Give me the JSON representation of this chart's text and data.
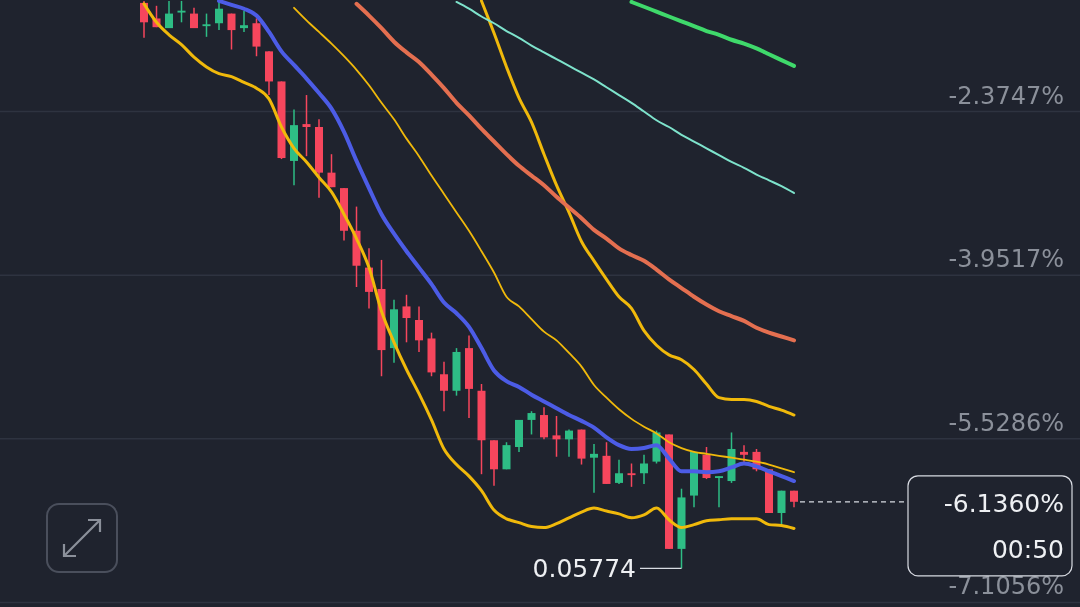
{
  "chart_data": {
    "type": "candlestick",
    "categories": [
      null,
      null,
      null,
      null,
      null,
      null,
      null,
      null,
      null,
      null,
      null,
      null,
      null,
      null,
      null,
      null,
      null,
      null,
      null,
      null,
      null,
      null,
      null,
      null,
      null,
      null,
      null,
      null,
      null,
      null,
      null,
      null,
      null,
      null,
      null,
      null,
      null,
      null,
      null,
      null,
      null,
      null,
      null,
      null,
      null,
      null,
      null,
      null,
      null,
      null,
      null,
      null,
      null
    ],
    "ohlc": [
      [
        -1.328,
        -1.309,
        -1.664,
        -1.515
      ],
      [
        -1.478,
        -1.356,
        -1.562,
        -1.562
      ],
      [
        -1.571,
        -1.309,
        -1.571,
        -1.431
      ],
      [
        -1.421,
        -1.309,
        -1.515,
        -1.403
      ],
      [
        -1.431,
        -1.375,
        -1.571,
        -1.571
      ],
      [
        -1.552,
        -1.431,
        -1.655,
        -1.534
      ],
      [
        -1.524,
        -1.309,
        -1.59,
        -1.384
      ],
      [
        -1.431,
        -1.431,
        -1.777,
        -1.59
      ],
      [
        -1.571,
        -1.403,
        -1.608,
        -1.543
      ],
      [
        -1.524,
        -1.478,
        -1.842,
        -1.749
      ],
      [
        -1.795,
        -1.795,
        -2.216,
        -2.085
      ],
      [
        -2.085,
        -2.085,
        -2.833,
        -2.823
      ],
      [
        -2.851,
        -2.356,
        -3.085,
        -2.506
      ],
      [
        -2.496,
        -2.216,
        -2.805,
        -2.524
      ],
      [
        -2.524,
        -2.45,
        -3.207,
        -2.964
      ],
      [
        -2.964,
        -2.786,
        -3.104,
        -3.104
      ],
      [
        -3.113,
        -3.113,
        -3.618,
        -3.524
      ],
      [
        -3.524,
        -3.291,
        -4.066,
        -3.861
      ],
      [
        -3.879,
        -3.693,
        -4.272,
        -4.113
      ],
      [
        -4.085,
        -3.805,
        -4.926,
        -4.674
      ],
      [
        -4.655,
        -4.188,
        -4.795,
        -4.281
      ],
      [
        -4.253,
        -4.141,
        -4.599,
        -4.365
      ],
      [
        -4.384,
        -4.253,
        -4.692,
        -4.58
      ],
      [
        -4.562,
        -4.506,
        -4.926,
        -4.889
      ],
      [
        -4.907,
        -4.786,
        -5.263,
        -5.066
      ],
      [
        -5.066,
        -4.655,
        -5.113,
        -4.692
      ],
      [
        -4.655,
        -4.534,
        -5.328,
        -5.048
      ],
      [
        -5.066,
        -5.001,
        -5.87,
        -5.543
      ],
      [
        -5.543,
        -5.543,
        -5.982,
        -5.823
      ],
      [
        -5.823,
        -5.562,
        -5.823,
        -5.59
      ],
      [
        -5.608,
        -5.347,
        -5.655,
        -5.347
      ],
      [
        -5.347,
        -5.263,
        -5.487,
        -5.281
      ],
      [
        -5.3,
        -5.225,
        -5.534,
        -5.515
      ],
      [
        -5.496,
        -5.309,
        -5.702,
        -5.534
      ],
      [
        -5.534,
        -5.44,
        -5.702,
        -5.45
      ],
      [
        -5.44,
        -5.44,
        -5.777,
        -5.72
      ],
      [
        -5.711,
        -5.58,
        -6.048,
        -5.674
      ],
      [
        -5.693,
        -5.562,
        -5.964,
        -5.964
      ],
      [
        -5.954,
        -5.73,
        -5.964,
        -5.861
      ],
      [
        -5.861,
        -5.767,
        -5.992,
        -5.879
      ],
      [
        -5.861,
        -5.683,
        -5.964,
        -5.767
      ],
      [
        -5.749,
        -5.45,
        -5.767,
        -5.468
      ],
      [
        -5.487,
        -5.487,
        -6.59,
        -6.59
      ],
      [
        -6.59,
        -6.01,
        -6.777,
        -6.094
      ],
      [
        -6.076,
        -5.655,
        -6.188,
        -5.655
      ],
      [
        -5.683,
        -5.608,
        -5.917,
        -5.907
      ],
      [
        -5.907,
        -5.889,
        -6.188,
        -5.889
      ],
      [
        -5.936,
        -5.468,
        -5.954,
        -5.627
      ],
      [
        -5.655,
        -5.59,
        -5.749,
        -5.683
      ],
      [
        -5.655,
        -5.627,
        -5.842,
        -5.823
      ],
      [
        -5.823,
        -5.823,
        -6.244,
        -6.244
      ],
      [
        -6.244,
        -6.029,
        -6.356,
        -6.029
      ],
      [
        -6.029,
        -6.029,
        -6.188,
        -6.136
      ]
    ],
    "series": [
      {
        "type": "line",
        "color": "#f0b90b",
        "values": [
          null,
          null,
          null,
          null,
          null,
          null,
          null,
          null,
          null,
          null,
          null,
          null,
          null,
          null,
          null,
          null,
          null,
          null,
          null,
          null,
          null,
          null,
          null,
          null,
          null,
          null,
          null,
          -1.309,
          -1.618,
          -1.945,
          -2.244,
          -2.478,
          -2.786,
          -3.085,
          -3.347,
          -3.627,
          -3.814,
          -3.992,
          -4.16,
          -4.272,
          -4.487,
          -4.627,
          -4.72,
          -4.767,
          -4.861,
          -5.001,
          -5.132,
          -5.15,
          -5.15,
          -5.169,
          -5.216,
          -5.253,
          -5.3
        ]
      },
      {
        "type": "line",
        "color": "#f0b90b",
        "values": [
          null,
          null,
          null,
          null,
          null,
          null,
          null,
          null,
          null,
          null,
          null,
          null,
          -1.375,
          -1.496,
          -1.608,
          -1.721,
          -1.842,
          -1.973,
          -2.122,
          -2.291,
          -2.45,
          -2.636,
          -2.805,
          -2.992,
          -3.169,
          -3.347,
          -3.524,
          -3.721,
          -3.926,
          -4.16,
          -4.253,
          -4.375,
          -4.496,
          -4.58,
          -4.702,
          -4.833,
          -5.01,
          -5.132,
          -5.244,
          -5.337,
          -5.412,
          -5.477,
          -5.562,
          -5.618,
          -5.655,
          -5.674,
          -5.693,
          -5.711,
          -5.73,
          -5.749,
          -5.777,
          -5.814,
          -5.851
        ]
      },
      {
        "type": "line",
        "color": "#f0b90b",
        "values": [
          -1.337,
          -1.515,
          -1.636,
          -1.73,
          -1.851,
          -1.945,
          -2.01,
          -2.038,
          -2.094,
          -2.15,
          -2.253,
          -2.524,
          -2.73,
          -2.861,
          -3.01,
          -3.15,
          -3.365,
          -3.599,
          -3.879,
          -4.3,
          -4.599,
          -4.861,
          -5.094,
          -5.347,
          -5.627,
          -5.777,
          -5.889,
          -6.029,
          -6.216,
          -6.3,
          -6.337,
          -6.375,
          -6.384,
          -6.347,
          -6.291,
          -6.235,
          -6.197,
          -6.225,
          -6.253,
          -6.291,
          -6.263,
          -6.197,
          -6.309,
          -6.384,
          -6.356,
          -6.319,
          -6.309,
          -6.3,
          -6.3,
          -6.3,
          -6.356,
          -6.365,
          -6.393
        ]
      },
      {
        "type": "line",
        "color": "#4c5ce6",
        "values": [
          null,
          null,
          null,
          null,
          null,
          null,
          -1.309,
          -1.347,
          -1.384,
          -1.45,
          -1.608,
          -1.795,
          -1.926,
          -2.057,
          -2.197,
          -2.347,
          -2.571,
          -2.851,
          -3.113,
          -3.365,
          -3.552,
          -3.721,
          -3.879,
          -4.038,
          -4.216,
          -4.319,
          -4.45,
          -4.655,
          -4.87,
          -4.973,
          -5.029,
          -5.104,
          -5.169,
          -5.235,
          -5.3,
          -5.356,
          -5.421,
          -5.515,
          -5.59,
          -5.627,
          -5.618,
          -5.59,
          -5.72,
          -5.842,
          -5.842,
          -5.851,
          -5.842,
          -5.805,
          -5.767,
          -5.795,
          -5.842,
          -5.889,
          -5.936
        ]
      },
      {
        "type": "line",
        "color": "#e46f50",
        "values": [
          null,
          null,
          null,
          null,
          null,
          null,
          null,
          null,
          null,
          null,
          null,
          null,
          null,
          null,
          null,
          null,
          null,
          -1.337,
          -1.45,
          -1.571,
          -1.702,
          -1.805,
          -1.898,
          -2.02,
          -2.15,
          -2.291,
          -2.412,
          -2.543,
          -2.664,
          -2.786,
          -2.898,
          -2.992,
          -3.085,
          -3.197,
          -3.3,
          -3.403,
          -3.515,
          -3.599,
          -3.693,
          -3.758,
          -3.814,
          -3.898,
          -3.992,
          -4.076,
          -4.16,
          -4.235,
          -4.3,
          -4.347,
          -4.393,
          -4.459,
          -4.506,
          -4.543,
          -4.58
        ]
      },
      {
        "type": "line",
        "color": "#7ee3cc",
        "values": [
          null,
          null,
          null,
          null,
          null,
          null,
          null,
          null,
          null,
          null,
          null,
          null,
          null,
          null,
          null,
          null,
          null,
          null,
          null,
          null,
          null,
          null,
          null,
          null,
          null,
          -1.319,
          -1.384,
          -1.459,
          -1.524,
          -1.599,
          -1.664,
          -1.739,
          -1.805,
          -1.87,
          -1.935,
          -2.001,
          -2.066,
          -2.141,
          -2.216,
          -2.291,
          -2.375,
          -2.459,
          -2.524,
          -2.599,
          -2.664,
          -2.73,
          -2.795,
          -2.861,
          -2.917,
          -2.982,
          -3.038,
          -3.094,
          -3.16
        ]
      },
      {
        "type": "line",
        "color": "#3fd96b",
        "values": [
          null,
          null,
          null,
          null,
          null,
          null,
          null,
          null,
          null,
          null,
          null,
          null,
          null,
          null,
          null,
          null,
          null,
          null,
          null,
          null,
          null,
          null,
          null,
          null,
          null,
          null,
          null,
          null,
          null,
          null,
          null,
          null,
          null,
          null,
          null,
          null,
          null,
          null,
          null,
          -1.319,
          -1.365,
          -1.412,
          -1.459,
          -1.506,
          -1.552,
          -1.599,
          -1.636,
          -1.683,
          -1.721,
          -1.767,
          -1.823,
          -1.879,
          -1.935
        ]
      }
    ],
    "ylim": [
      -7.15,
      -1.3
    ],
    "yticks": [
      {
        "value": -2.3747,
        "label": "-2.3747%"
      },
      {
        "value": -3.9517,
        "label": "-3.9517%"
      },
      {
        "value": -5.5286,
        "label": "-5.5286%"
      },
      {
        "value": -7.1056,
        "label": "-7.1056%"
      }
    ],
    "grid": "y",
    "ref_lines": [
      {
        "axis": "y",
        "value": -6.136,
        "label": "-6.1360%",
        "line_style": "dashed",
        "color": "#d8dbe2"
      }
    ],
    "annotations": [
      "00:50",
      "0.05774"
    ]
  }
}
